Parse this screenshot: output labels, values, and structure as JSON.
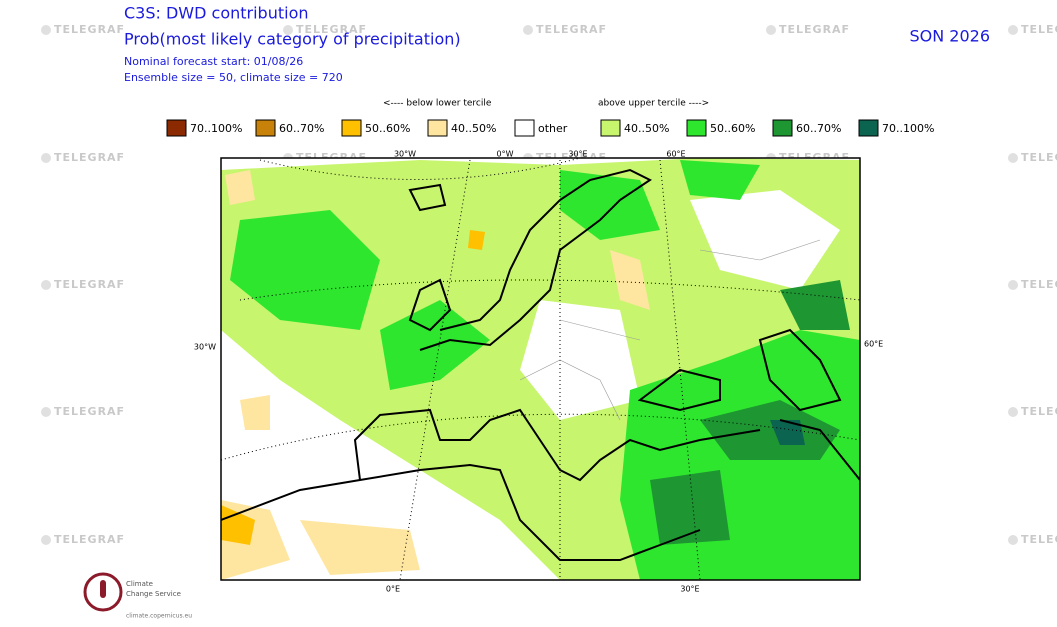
{
  "header": {
    "title": "C3S: DWD contribution",
    "subtitle": "Prob(most likely category of precipitation)",
    "forecast_start": "Nominal forecast start: 01/08/26",
    "ensemble": "Ensemble size = 50, climate size = 720",
    "season": "SON 2026"
  },
  "legend": {
    "below_label": "<---- below lower tercile",
    "above_label": "above upper tercile ---->",
    "items": [
      {
        "label": "70..100%",
        "color": "#8b2a00"
      },
      {
        "label": "60..70%",
        "color": "#c8820a"
      },
      {
        "label": "50..60%",
        "color": "#ffc000"
      },
      {
        "label": "40..50%",
        "color": "#ffe6a0"
      },
      {
        "label": "other",
        "color": "#ffffff"
      },
      {
        "label": "40..50%",
        "color": "#c8f56e"
      },
      {
        "label": "50..60%",
        "color": "#2ee62e"
      },
      {
        "label": "60..70%",
        "color": "#1e9632"
      },
      {
        "label": "70..100%",
        "color": "#0a6450"
      }
    ]
  },
  "map": {
    "top_labels": [
      "30°W",
      "0°W",
      "30°E",
      "60°E"
    ],
    "left_label": "30°W",
    "right_label": "60°E",
    "bottom_labels": [
      "0°E",
      "30°E"
    ]
  },
  "watermark": "TELEGRAF",
  "logo": {
    "line1": "Climate",
    "line2": "Change Service",
    "url": "climate.copernicus.eu"
  }
}
